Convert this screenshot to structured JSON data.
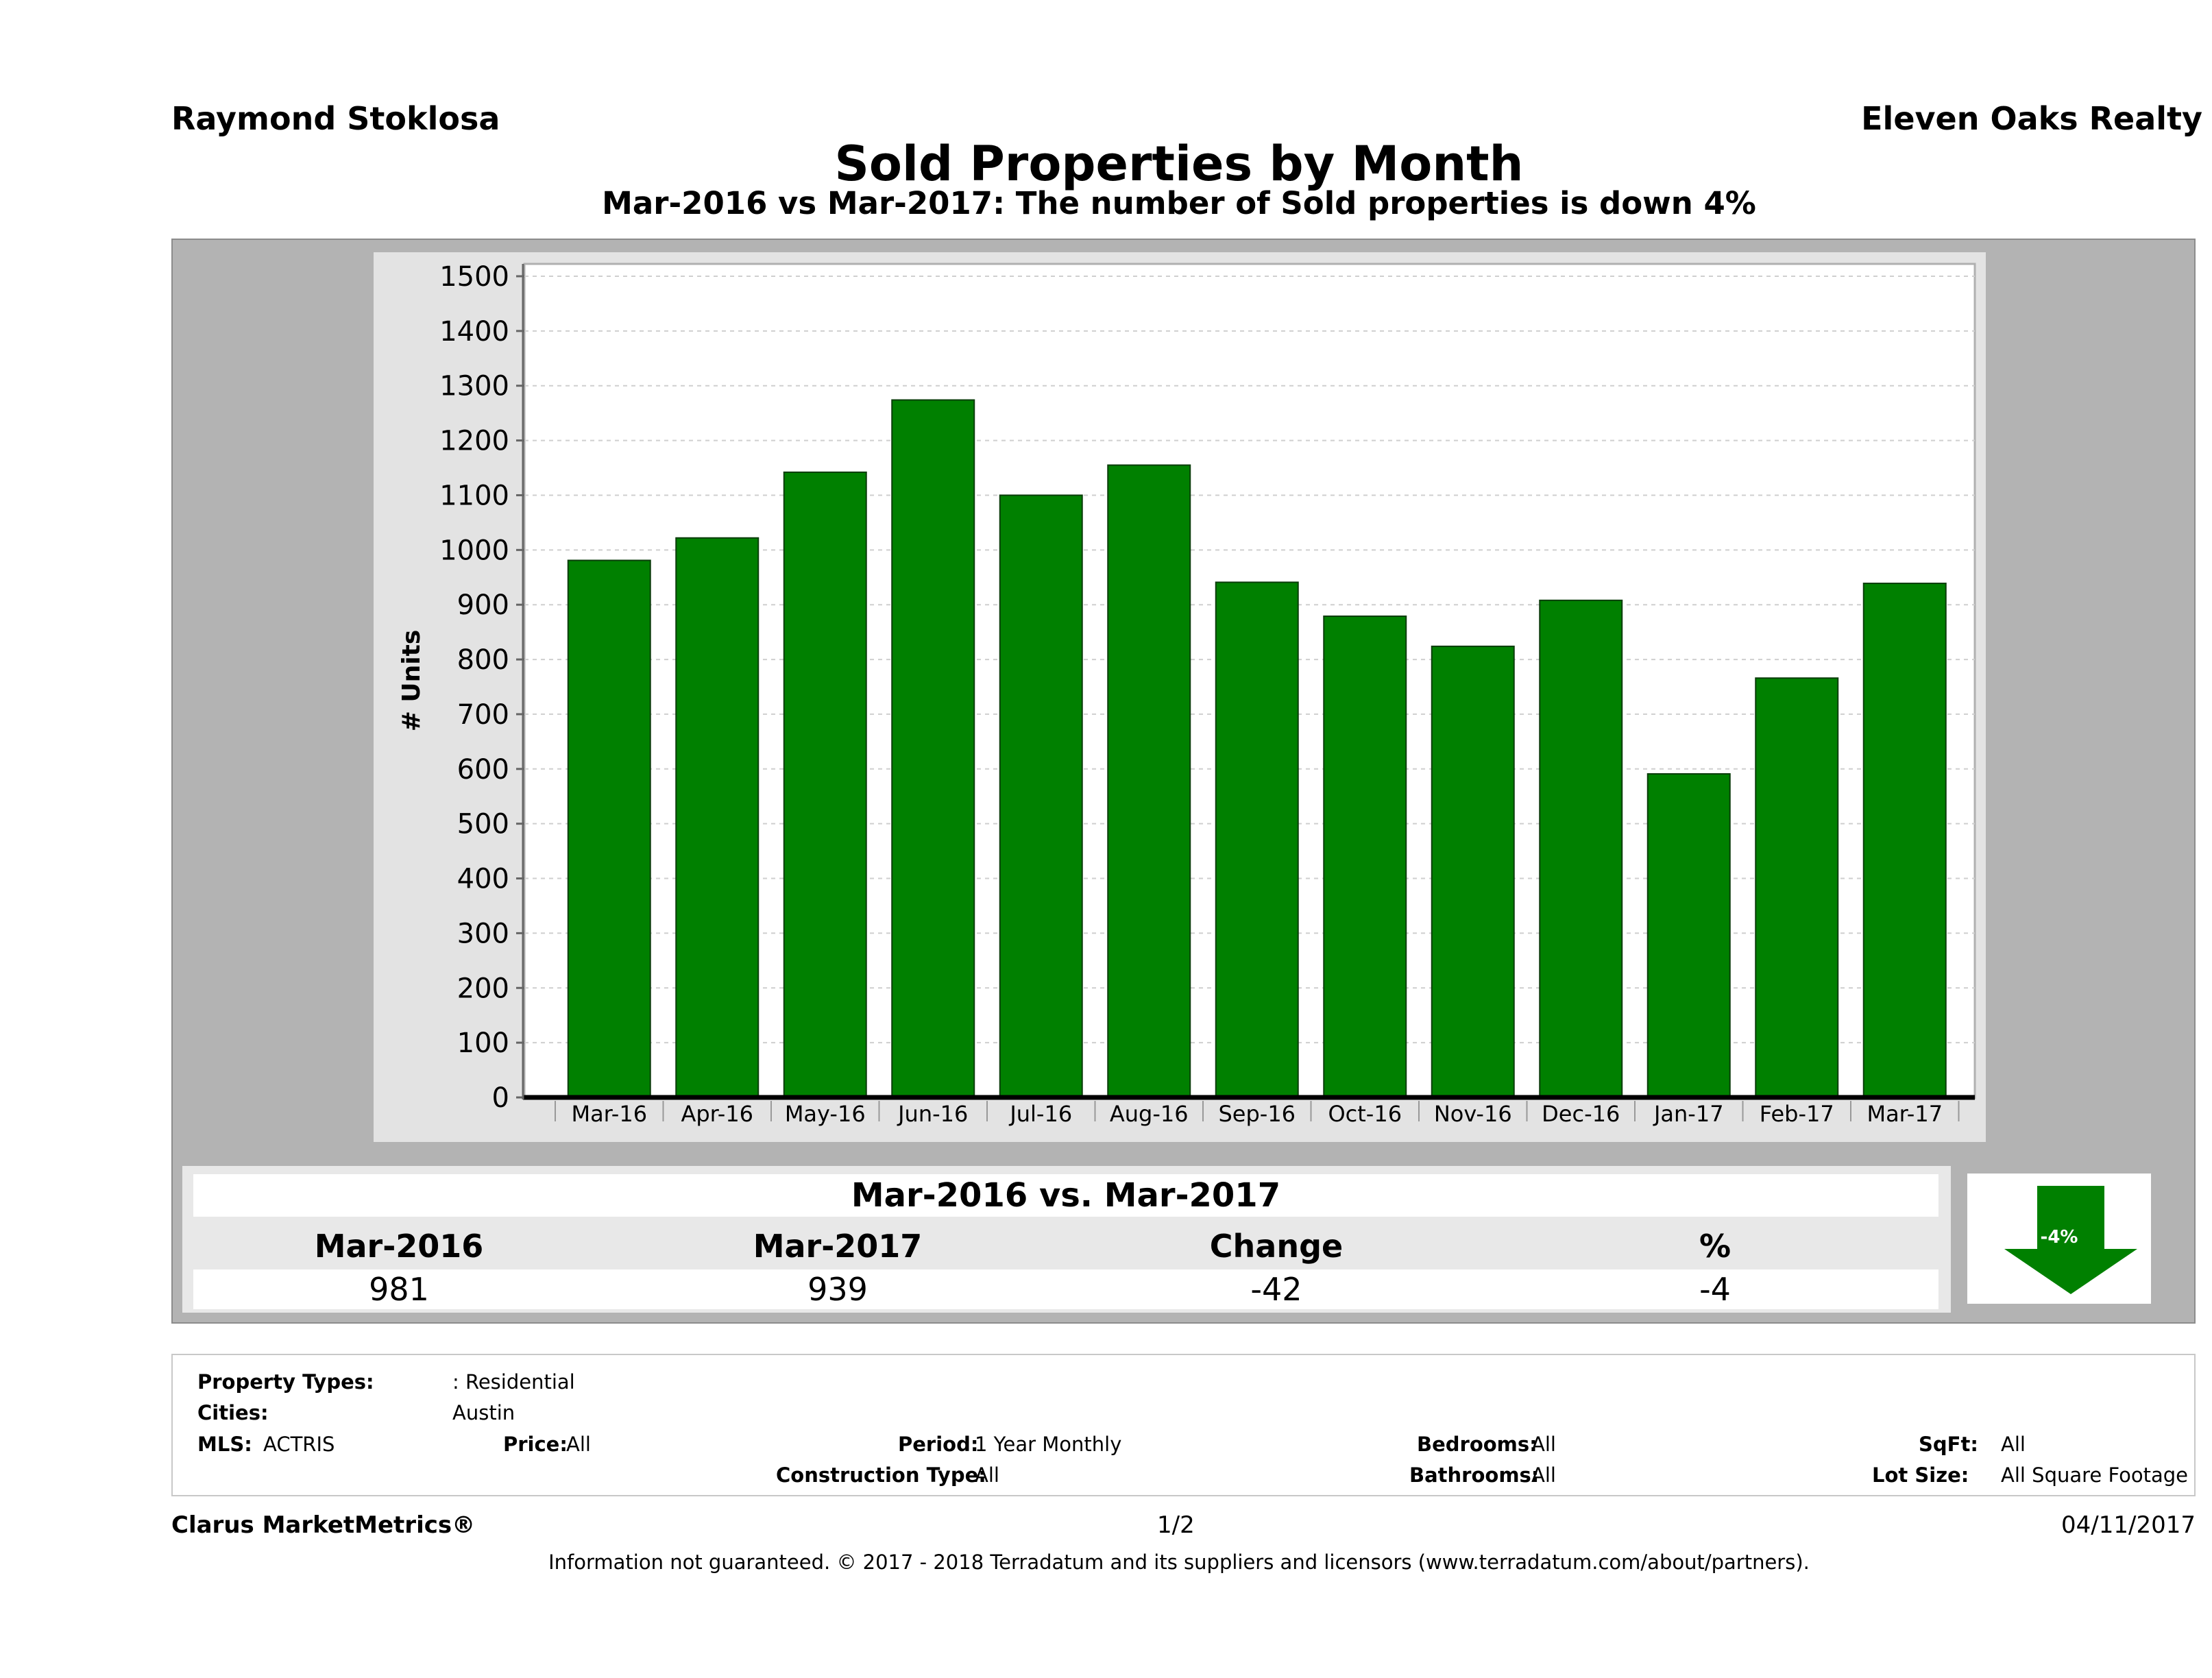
{
  "header": {
    "agent": "Raymond Stoklosa",
    "brokerage": "Eleven Oaks Realty",
    "title": "Sold Properties by Month",
    "subtitle": "Mar-2016 vs Mar-2017: The number of Sold  properties is down 4%"
  },
  "chart_data": {
    "type": "bar",
    "categories": [
      "Mar-16",
      "Apr-16",
      "May-16",
      "Jun-16",
      "Jul-16",
      "Aug-16",
      "Sep-16",
      "Oct-16",
      "Nov-16",
      "Dec-16",
      "Jan-17",
      "Feb-17",
      "Mar-17"
    ],
    "values": [
      981,
      1022,
      1142,
      1274,
      1100,
      1155,
      941,
      879,
      824,
      908,
      591,
      766,
      939
    ],
    "ylabel": "# Units",
    "ylim": [
      0,
      1500
    ],
    "yticks": [
      0,
      100,
      200,
      300,
      400,
      500,
      600,
      700,
      800,
      900,
      1000,
      1100,
      1200,
      1300,
      1400,
      1500
    ],
    "bar_color": "#008000",
    "grid": true
  },
  "summary": {
    "title": "Mar-2016 vs. Mar-2017",
    "headers": [
      "Mar-2016",
      "Mar-2017",
      "Change",
      "%"
    ],
    "values": [
      "981",
      "939",
      "-42",
      "-4"
    ],
    "arrow": {
      "direction": "down",
      "label": "-4%",
      "color": "#008000"
    }
  },
  "filters": {
    "property_types_label": "Property Types:",
    "property_types_value": ": Residential",
    "cities_label": "Cities:",
    "cities_value": "Austin",
    "mls_label": "MLS:",
    "mls_value": "ACTRIS",
    "price_label": "Price:",
    "price_value": "All",
    "period_label": "Period:",
    "period_value": "1 Year Monthly",
    "construction_label": "Construction Type:",
    "construction_value": "All",
    "bedrooms_label": "Bedrooms:",
    "bedrooms_value": "All",
    "bathrooms_label": "Bathrooms:",
    "bathrooms_value": "All",
    "sqft_label": "SqFt:",
    "sqft_value": "All",
    "lotsize_label": "Lot Size:",
    "lotsize_value": "All Square Footage"
  },
  "footer": {
    "brand": "Clarus MarketMetrics®",
    "page": "1/2",
    "date": "04/11/2017",
    "disclaimer": "Information not guaranteed. © 2017 - 2018 Terradatum and its suppliers and licensors (www.terradatum.com/about/partners)."
  }
}
